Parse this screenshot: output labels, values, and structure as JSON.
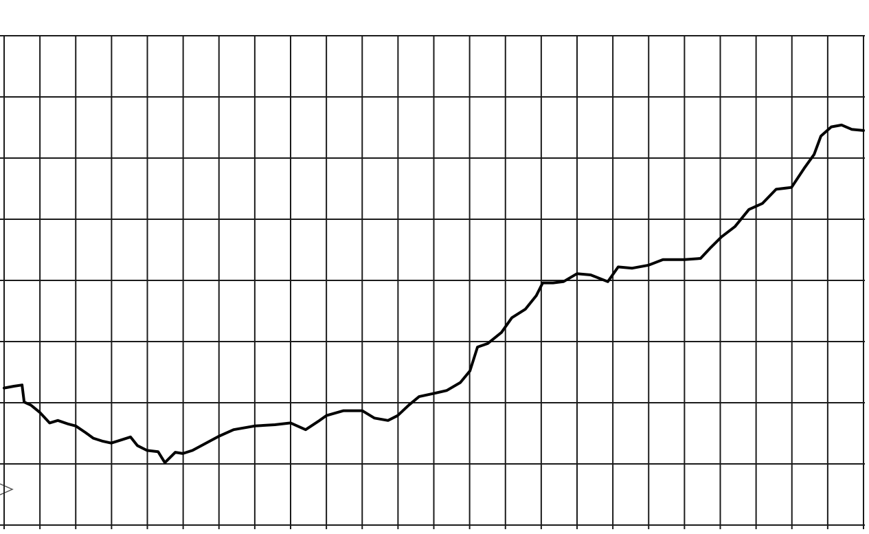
{
  "chart_data": {
    "type": "line",
    "x": [
      0,
      0.27,
      0.5,
      0.56,
      0.75,
      1.0,
      1.27,
      1.5,
      1.8,
      2.0,
      2.28,
      2.49,
      2.76,
      2.99,
      3.26,
      3.53,
      3.72,
      3.99,
      4.3,
      4.49,
      4.78,
      4.99,
      5.26,
      5.64,
      5.99,
      6.41,
      7.0,
      7.56,
      8.0,
      8.42,
      8.81,
      9.0,
      9.48,
      10.0,
      10.34,
      10.72,
      10.99,
      11.3,
      11.59,
      11.99,
      12.36,
      12.74,
      13.01,
      13.22,
      13.51,
      13.89,
      14.18,
      14.56,
      14.86,
      15.04,
      15.33,
      15.62,
      16.0,
      16.38,
      16.86,
      17.15,
      17.54,
      18.0,
      18.4,
      18.99,
      19.45,
      19.74,
      20.03,
      20.41,
      20.8,
      21.18,
      21.56,
      21.99,
      22.34,
      22.62,
      22.81,
      23.1,
      23.39,
      23.67,
      24.0
    ],
    "series": [
      {
        "color": "#000000",
        "values": [
          2.24,
          2.27,
          2.29,
          2.01,
          1.96,
          1.84,
          1.67,
          1.71,
          1.65,
          1.62,
          1.51,
          1.42,
          1.37,
          1.34,
          1.39,
          1.44,
          1.3,
          1.22,
          1.2,
          1.02,
          1.19,
          1.17,
          1.22,
          1.34,
          1.45,
          1.56,
          1.62,
          1.64,
          1.67,
          1.56,
          1.71,
          1.79,
          1.87,
          1.87,
          1.75,
          1.71,
          1.79,
          1.96,
          2.1,
          2.15,
          2.2,
          2.33,
          2.52,
          2.91,
          2.97,
          3.15,
          3.39,
          3.53,
          3.75,
          3.96,
          3.96,
          3.98,
          4.11,
          4.09,
          3.98,
          4.22,
          4.2,
          4.25,
          4.34,
          4.34,
          4.36,
          4.54,
          4.71,
          4.88,
          5.16,
          5.26,
          5.49,
          5.52,
          5.83,
          6.06,
          6.36,
          6.51,
          6.54,
          6.47,
          6.45
        ]
      }
    ],
    "xlim": [
      0,
      24
    ],
    "ylim": [
      0,
      8
    ],
    "xticks": [
      0,
      1,
      2,
      3,
      4,
      5,
      6,
      7,
      8,
      9,
      10,
      11,
      12,
      13,
      14,
      15,
      16,
      17,
      18,
      19,
      20,
      21,
      22,
      23,
      24
    ],
    "yticks": [
      0,
      1,
      2,
      3,
      4,
      5,
      6,
      7,
      8
    ],
    "grid": true
  }
}
